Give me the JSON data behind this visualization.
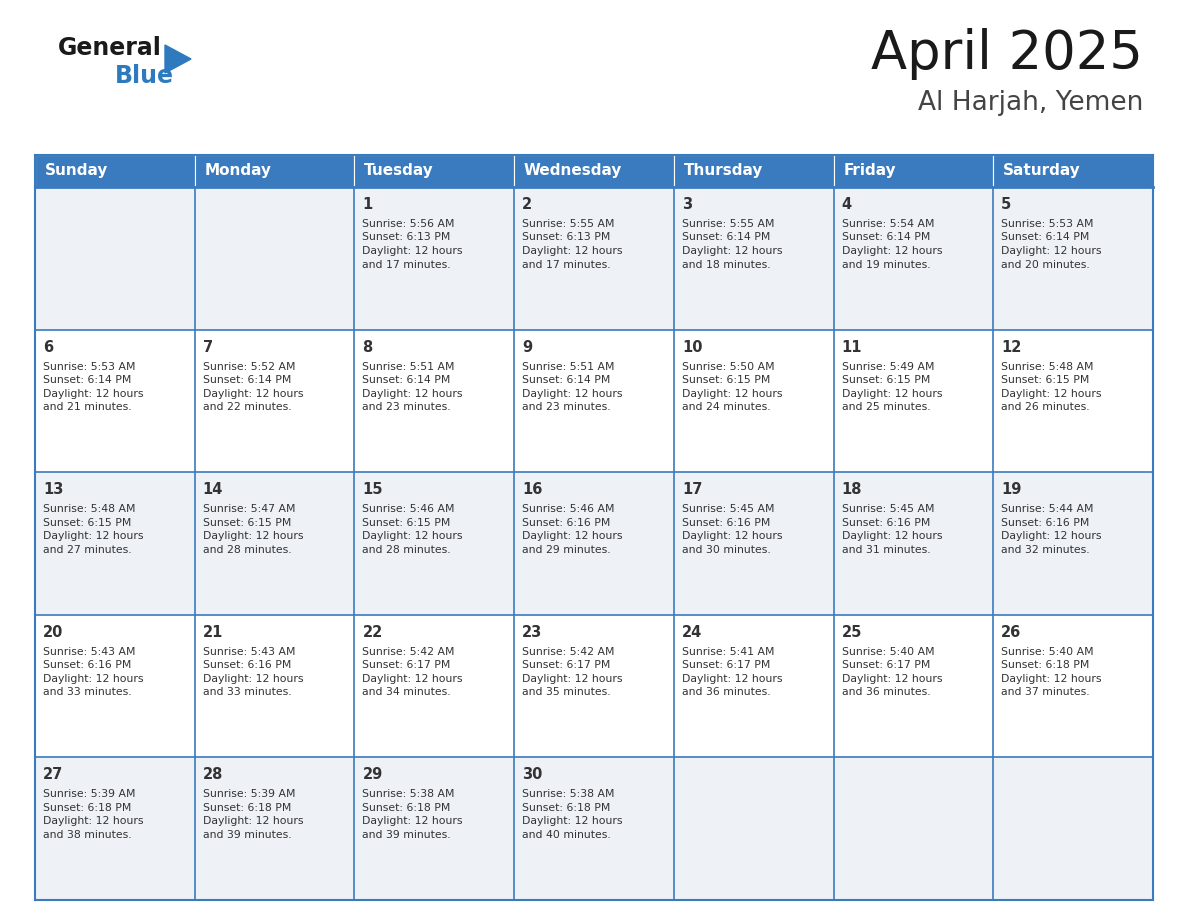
{
  "title": "April 2025",
  "subtitle": "Al Harjah, Yemen",
  "header_bg_color": "#3a7abf",
  "header_text_color": "#ffffff",
  "weekdays": [
    "Sunday",
    "Monday",
    "Tuesday",
    "Wednesday",
    "Thursday",
    "Friday",
    "Saturday"
  ],
  "cell_bg_light": "#eef2f7",
  "cell_bg_white": "#ffffff",
  "cell_border_color": "#3a7abf",
  "row_divider_color": "#3a7abf",
  "text_color": "#333333",
  "days": [
    {
      "day": 1,
      "col": 2,
      "row": 0,
      "sunrise": "5:56 AM",
      "sunset": "6:13 PM",
      "daylight_h": "12 hours",
      "daylight_m": "17 minutes."
    },
    {
      "day": 2,
      "col": 3,
      "row": 0,
      "sunrise": "5:55 AM",
      "sunset": "6:13 PM",
      "daylight_h": "12 hours",
      "daylight_m": "17 minutes."
    },
    {
      "day": 3,
      "col": 4,
      "row": 0,
      "sunrise": "5:55 AM",
      "sunset": "6:14 PM",
      "daylight_h": "12 hours",
      "daylight_m": "18 minutes."
    },
    {
      "day": 4,
      "col": 5,
      "row": 0,
      "sunrise": "5:54 AM",
      "sunset": "6:14 PM",
      "daylight_h": "12 hours",
      "daylight_m": "19 minutes."
    },
    {
      "day": 5,
      "col": 6,
      "row": 0,
      "sunrise": "5:53 AM",
      "sunset": "6:14 PM",
      "daylight_h": "12 hours",
      "daylight_m": "20 minutes."
    },
    {
      "day": 6,
      "col": 0,
      "row": 1,
      "sunrise": "5:53 AM",
      "sunset": "6:14 PM",
      "daylight_h": "12 hours",
      "daylight_m": "21 minutes."
    },
    {
      "day": 7,
      "col": 1,
      "row": 1,
      "sunrise": "5:52 AM",
      "sunset": "6:14 PM",
      "daylight_h": "12 hours",
      "daylight_m": "22 minutes."
    },
    {
      "day": 8,
      "col": 2,
      "row": 1,
      "sunrise": "5:51 AM",
      "sunset": "6:14 PM",
      "daylight_h": "12 hours",
      "daylight_m": "23 minutes."
    },
    {
      "day": 9,
      "col": 3,
      "row": 1,
      "sunrise": "5:51 AM",
      "sunset": "6:14 PM",
      "daylight_h": "12 hours",
      "daylight_m": "23 minutes."
    },
    {
      "day": 10,
      "col": 4,
      "row": 1,
      "sunrise": "5:50 AM",
      "sunset": "6:15 PM",
      "daylight_h": "12 hours",
      "daylight_m": "24 minutes."
    },
    {
      "day": 11,
      "col": 5,
      "row": 1,
      "sunrise": "5:49 AM",
      "sunset": "6:15 PM",
      "daylight_h": "12 hours",
      "daylight_m": "25 minutes."
    },
    {
      "day": 12,
      "col": 6,
      "row": 1,
      "sunrise": "5:48 AM",
      "sunset": "6:15 PM",
      "daylight_h": "12 hours",
      "daylight_m": "26 minutes."
    },
    {
      "day": 13,
      "col": 0,
      "row": 2,
      "sunrise": "5:48 AM",
      "sunset": "6:15 PM",
      "daylight_h": "12 hours",
      "daylight_m": "27 minutes."
    },
    {
      "day": 14,
      "col": 1,
      "row": 2,
      "sunrise": "5:47 AM",
      "sunset": "6:15 PM",
      "daylight_h": "12 hours",
      "daylight_m": "28 minutes."
    },
    {
      "day": 15,
      "col": 2,
      "row": 2,
      "sunrise": "5:46 AM",
      "sunset": "6:15 PM",
      "daylight_h": "12 hours",
      "daylight_m": "28 minutes."
    },
    {
      "day": 16,
      "col": 3,
      "row": 2,
      "sunrise": "5:46 AM",
      "sunset": "6:16 PM",
      "daylight_h": "12 hours",
      "daylight_m": "29 minutes."
    },
    {
      "day": 17,
      "col": 4,
      "row": 2,
      "sunrise": "5:45 AM",
      "sunset": "6:16 PM",
      "daylight_h": "12 hours",
      "daylight_m": "30 minutes."
    },
    {
      "day": 18,
      "col": 5,
      "row": 2,
      "sunrise": "5:45 AM",
      "sunset": "6:16 PM",
      "daylight_h": "12 hours",
      "daylight_m": "31 minutes."
    },
    {
      "day": 19,
      "col": 6,
      "row": 2,
      "sunrise": "5:44 AM",
      "sunset": "6:16 PM",
      "daylight_h": "12 hours",
      "daylight_m": "32 minutes."
    },
    {
      "day": 20,
      "col": 0,
      "row": 3,
      "sunrise": "5:43 AM",
      "sunset": "6:16 PM",
      "daylight_h": "12 hours",
      "daylight_m": "33 minutes."
    },
    {
      "day": 21,
      "col": 1,
      "row": 3,
      "sunrise": "5:43 AM",
      "sunset": "6:16 PM",
      "daylight_h": "12 hours",
      "daylight_m": "33 minutes."
    },
    {
      "day": 22,
      "col": 2,
      "row": 3,
      "sunrise": "5:42 AM",
      "sunset": "6:17 PM",
      "daylight_h": "12 hours",
      "daylight_m": "34 minutes."
    },
    {
      "day": 23,
      "col": 3,
      "row": 3,
      "sunrise": "5:42 AM",
      "sunset": "6:17 PM",
      "daylight_h": "12 hours",
      "daylight_m": "35 minutes."
    },
    {
      "day": 24,
      "col": 4,
      "row": 3,
      "sunrise": "5:41 AM",
      "sunset": "6:17 PM",
      "daylight_h": "12 hours",
      "daylight_m": "36 minutes."
    },
    {
      "day": 25,
      "col": 5,
      "row": 3,
      "sunrise": "5:40 AM",
      "sunset": "6:17 PM",
      "daylight_h": "12 hours",
      "daylight_m": "36 minutes."
    },
    {
      "day": 26,
      "col": 6,
      "row": 3,
      "sunrise": "5:40 AM",
      "sunset": "6:18 PM",
      "daylight_h": "12 hours",
      "daylight_m": "37 minutes."
    },
    {
      "day": 27,
      "col": 0,
      "row": 4,
      "sunrise": "5:39 AM",
      "sunset": "6:18 PM",
      "daylight_h": "12 hours",
      "daylight_m": "38 minutes."
    },
    {
      "day": 28,
      "col": 1,
      "row": 4,
      "sunrise": "5:39 AM",
      "sunset": "6:18 PM",
      "daylight_h": "12 hours",
      "daylight_m": "39 minutes."
    },
    {
      "day": 29,
      "col": 2,
      "row": 4,
      "sunrise": "5:38 AM",
      "sunset": "6:18 PM",
      "daylight_h": "12 hours",
      "daylight_m": "39 minutes."
    },
    {
      "day": 30,
      "col": 3,
      "row": 4,
      "sunrise": "5:38 AM",
      "sunset": "6:18 PM",
      "daylight_h": "12 hours",
      "daylight_m": "40 minutes."
    }
  ],
  "logo_general_color": "#1a1a1a",
  "logo_blue_color": "#2e7abf",
  "logo_triangle_color": "#2e7abf",
  "fig_width": 11.88,
  "fig_height": 9.18,
  "fig_dpi": 100
}
